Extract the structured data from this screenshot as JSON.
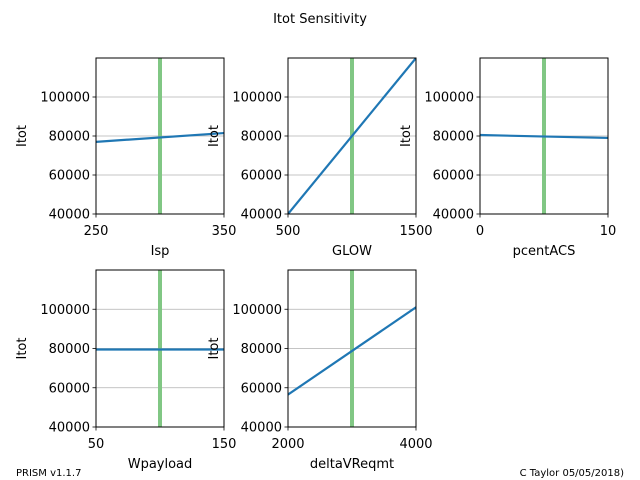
{
  "figure_title": "Itot Sensitivity",
  "footer_left": "PRISM v1.1.7",
  "footer_right": "C Taylor 05/05/2018)",
  "colors": {
    "line": "#1f77b4",
    "marker": "#81c784",
    "grid": "#b0b0b0"
  },
  "chart_data": [
    {
      "type": "line",
      "xlabel": "Isp",
      "ylabel": "Itot",
      "xlim": [
        250,
        350
      ],
      "ylim": [
        40000,
        120000
      ],
      "xticks": [
        "250",
        "350"
      ],
      "yticks": [
        "40000",
        "60000",
        "80000",
        "100000"
      ],
      "grid_y": true,
      "marker_x": 300,
      "x": [
        250,
        350
      ],
      "y": [
        77000,
        81500
      ]
    },
    {
      "type": "line",
      "xlabel": "GLOW",
      "ylabel": "Itot",
      "xlim": [
        500,
        1500
      ],
      "ylim": [
        40000,
        120000
      ],
      "xticks": [
        "500",
        "1500"
      ],
      "yticks": [
        "40000",
        "60000",
        "80000",
        "100000"
      ],
      "grid_y": true,
      "marker_x": 1000,
      "x": [
        500,
        1500
      ],
      "y": [
        40000,
        120000
      ]
    },
    {
      "type": "line",
      "xlabel": "pcentACS",
      "ylabel": "Itot",
      "xlim": [
        0,
        10
      ],
      "ylim": [
        40000,
        120000
      ],
      "xticks": [
        "0",
        "10"
      ],
      "yticks": [
        "40000",
        "60000",
        "80000",
        "100000"
      ],
      "grid_y": true,
      "marker_x": 5,
      "x": [
        0,
        10
      ],
      "y": [
        80500,
        79000
      ]
    },
    {
      "type": "line",
      "xlabel": "Wpayload",
      "ylabel": "Itot",
      "xlim": [
        50,
        150
      ],
      "ylim": [
        40000,
        120000
      ],
      "xticks": [
        "50",
        "150"
      ],
      "yticks": [
        "40000",
        "60000",
        "80000",
        "100000"
      ],
      "grid_y": true,
      "marker_x": 100,
      "x": [
        50,
        150
      ],
      "y": [
        79500,
        79500
      ]
    },
    {
      "type": "line",
      "xlabel": "deltaVReqmt",
      "ylabel": "Itot",
      "xlim": [
        2000,
        4000
      ],
      "ylim": [
        40000,
        120000
      ],
      "xticks": [
        "2000",
        "4000"
      ],
      "yticks": [
        "40000",
        "60000",
        "80000",
        "100000"
      ],
      "grid_y": true,
      "marker_x": 3000,
      "x": [
        2000,
        4000
      ],
      "y": [
        56500,
        101000
      ]
    }
  ]
}
